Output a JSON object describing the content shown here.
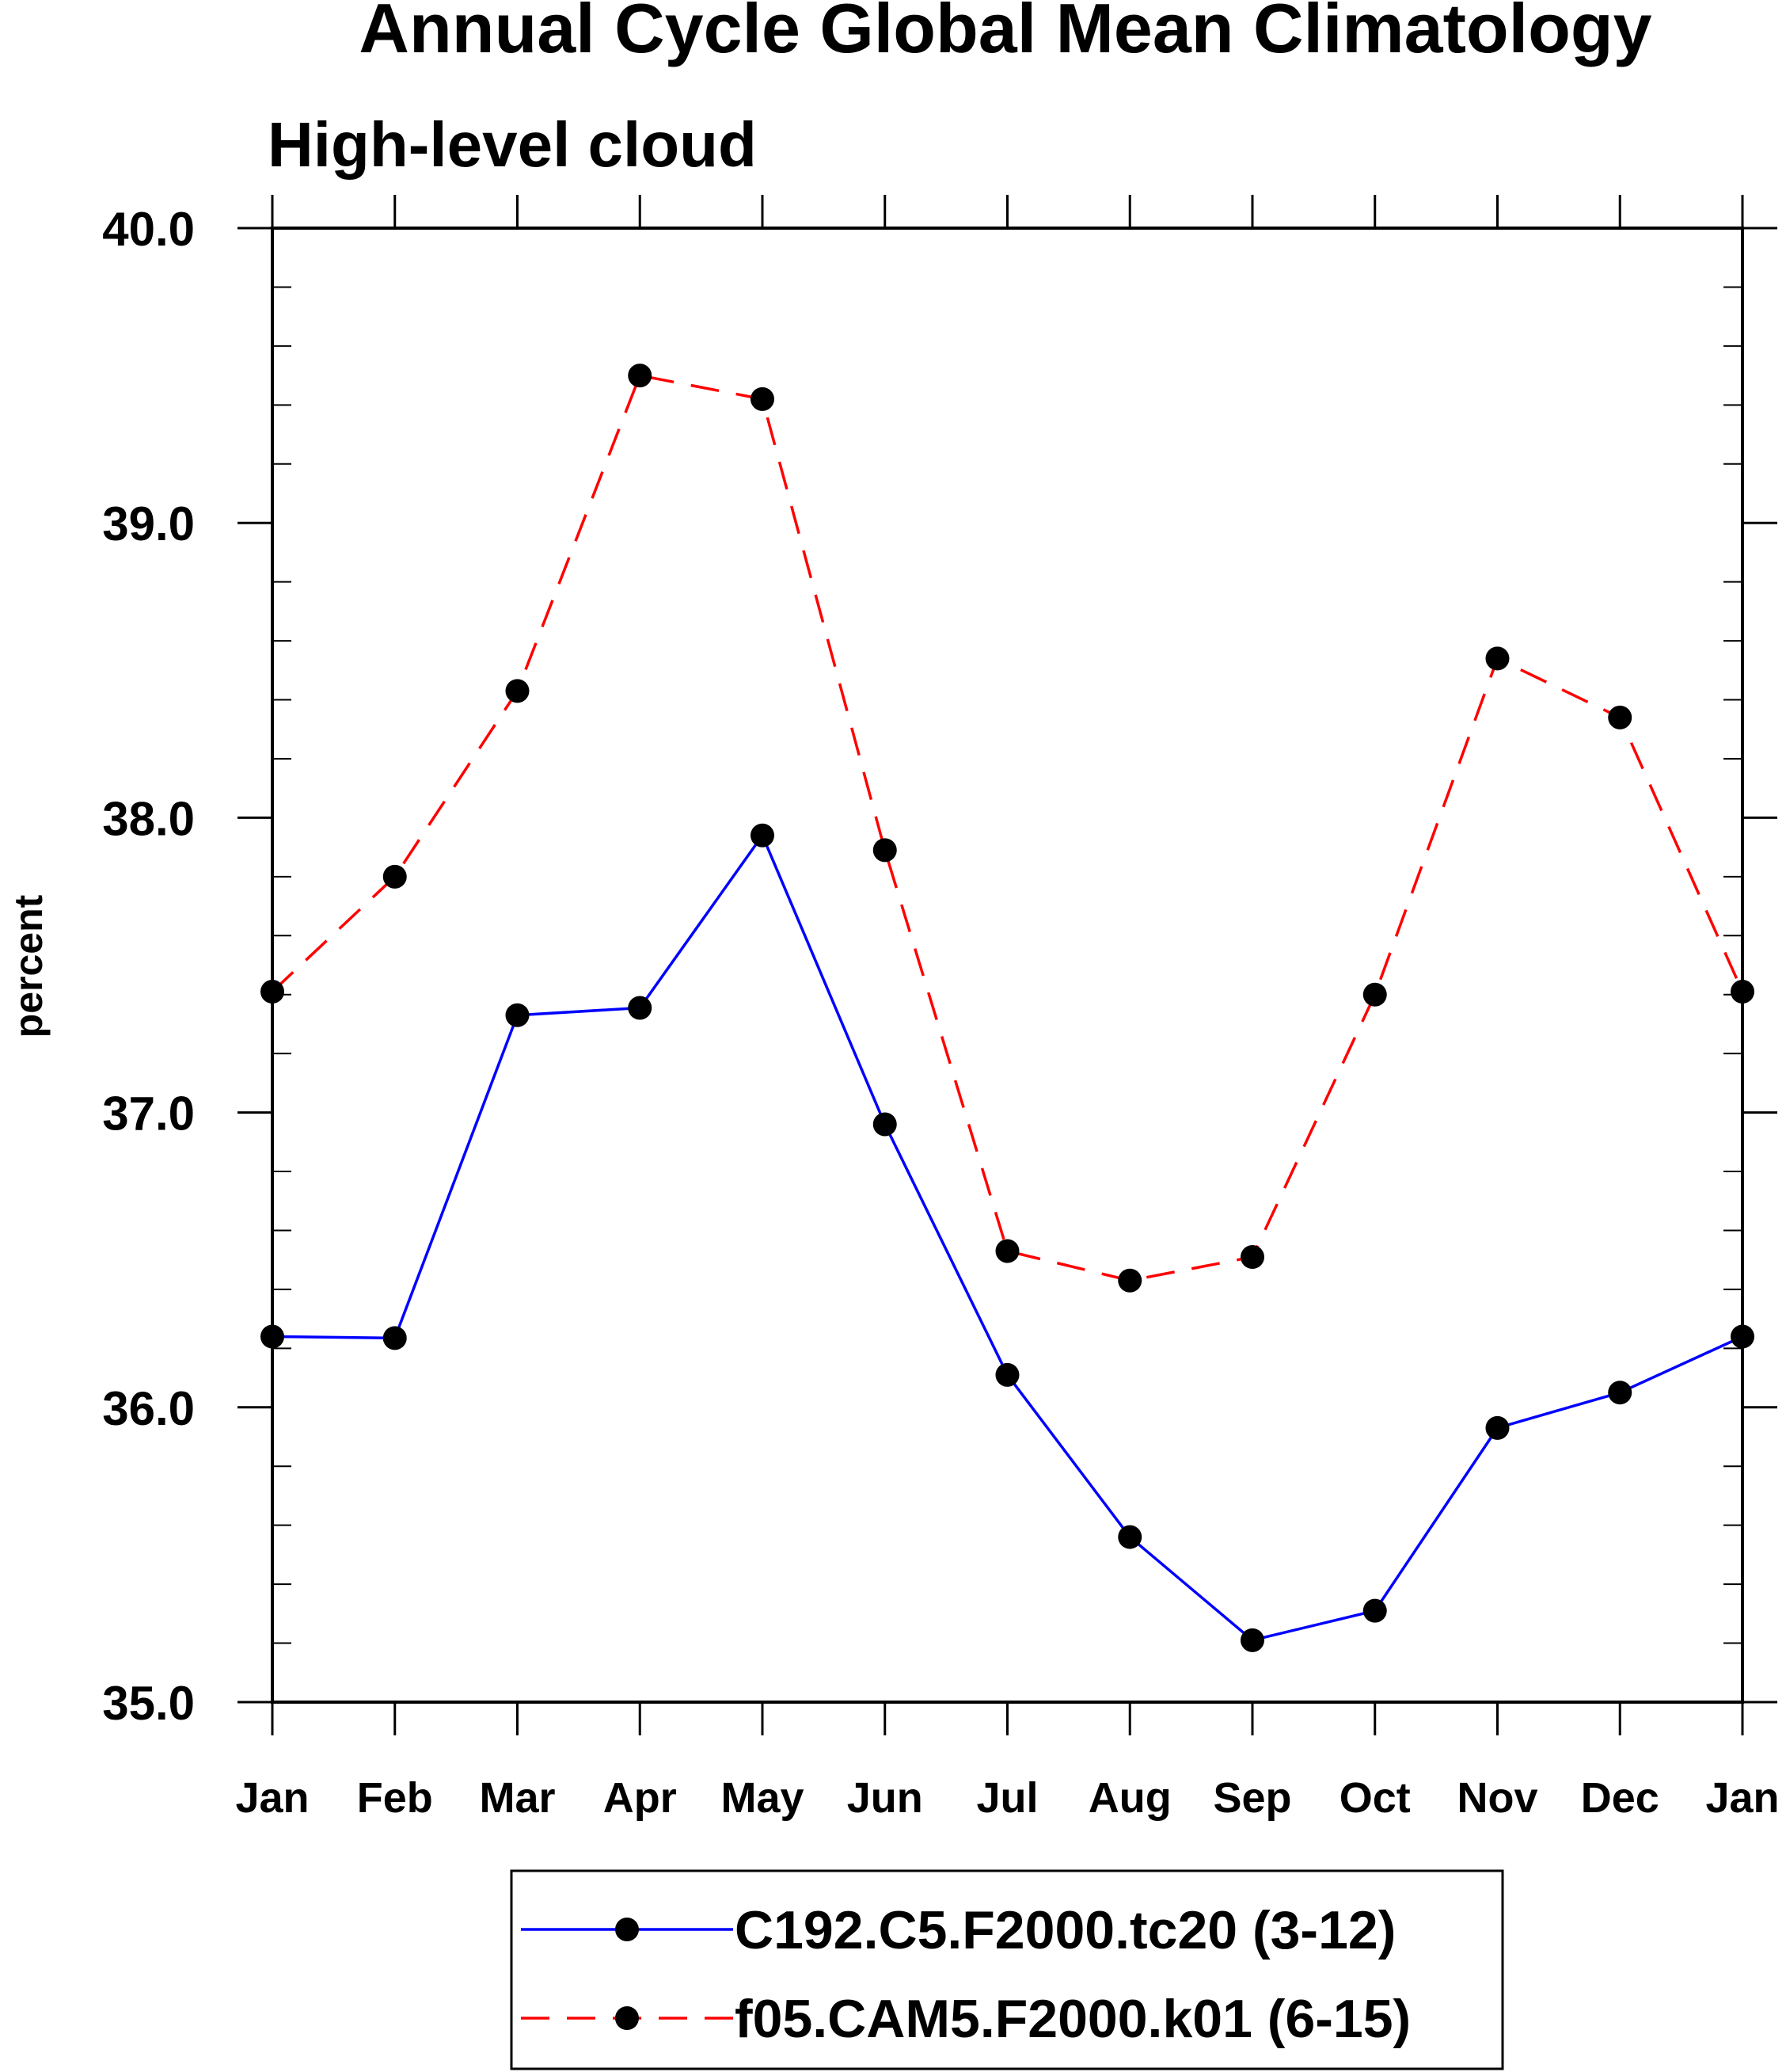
{
  "chart_data": {
    "type": "line",
    "title": "Annual Cycle Global Mean Climatology",
    "subtitle": "High-level cloud",
    "xlabel": "",
    "ylabel": "percent",
    "categories": [
      "Jan",
      "Feb",
      "Mar",
      "Apr",
      "May",
      "Jun",
      "Jul",
      "Aug",
      "Sep",
      "Oct",
      "Nov",
      "Dec",
      "Jan"
    ],
    "ylim": [
      35.0,
      40.0
    ],
    "yticks": [
      "35.0",
      "36.0",
      "37.0",
      "38.0",
      "39.0",
      "40.0"
    ],
    "grid": false,
    "legend_position": "bottom-center",
    "series": [
      {
        "name": "C192.C5.F2000.tc20 (3-12)",
        "color": "#0000ff",
        "line_style": "solid",
        "marker": "filled-circle",
        "values": [
          36.24,
          36.235,
          37.33,
          37.355,
          37.94,
          36.96,
          36.11,
          35.56,
          35.21,
          35.31,
          35.93,
          36.05,
          36.24
        ]
      },
      {
        "name": "f05.CAM5.F2000.k01 (6-15)",
        "color": "#ff0000",
        "line_style": "dashed",
        "marker": "filled-circle",
        "values": [
          37.41,
          37.8,
          38.43,
          39.5,
          39.42,
          37.89,
          36.53,
          36.43,
          36.51,
          37.4,
          38.54,
          38.34,
          37.41
        ]
      }
    ]
  }
}
